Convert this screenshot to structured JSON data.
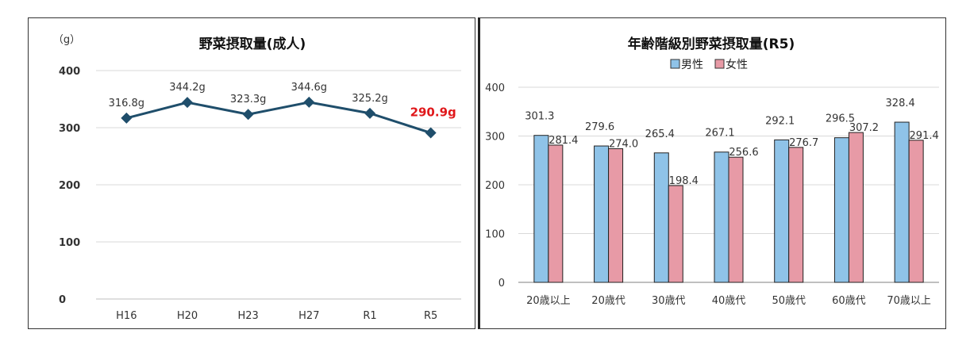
{
  "chart_data": [
    {
      "type": "line",
      "title": "野菜摂取量(成人)",
      "unit_label": "（g）",
      "categories": [
        "H16",
        "H20",
        "H23",
        "H27",
        "R1",
        "R5"
      ],
      "values": [
        316.8,
        344.2,
        323.3,
        344.6,
        325.2,
        290.9
      ],
      "data_labels": [
        "316.8g",
        "344.2g",
        "323.3g",
        "344.6g",
        "325.2g",
        "290.9g"
      ],
      "ylim": [
        0,
        400
      ],
      "yticks": [
        "0",
        "100",
        "200",
        "300",
        "400"
      ],
      "grid": true,
      "line_color": "#1f4e6b",
      "highlight_color": "#e0181b"
    },
    {
      "type": "bar",
      "title": "年齢階級別野菜摂取量(R5)",
      "categories": [
        "20歳以上",
        "20歳代",
        "30歳代",
        "40歳代",
        "50歳代",
        "60歳代",
        "70歳以上"
      ],
      "series": [
        {
          "name": "男性",
          "values": [
            301.3,
            279.6,
            265.4,
            267.1,
            292.1,
            296.5,
            328.4
          ],
          "color": "#8fc3e8"
        },
        {
          "name": "女性",
          "values": [
            281.4,
            274.0,
            198.4,
            256.6,
            276.7,
            307.2,
            291.4
          ],
          "color": "#e79aa6"
        }
      ],
      "value_labels": [
        [
          "301.3",
          "279.6",
          "265.4",
          "267.1",
          "292.1",
          "296.5",
          "328.4"
        ],
        [
          "281.4",
          "274.0",
          "198.4",
          "256.6",
          "276.7",
          "307.2",
          "291.4"
        ]
      ],
      "ylim": [
        0,
        400
      ],
      "yticks": [
        "0",
        "100",
        "200",
        "300",
        "400"
      ],
      "grid": true,
      "legend_position": "top"
    }
  ]
}
